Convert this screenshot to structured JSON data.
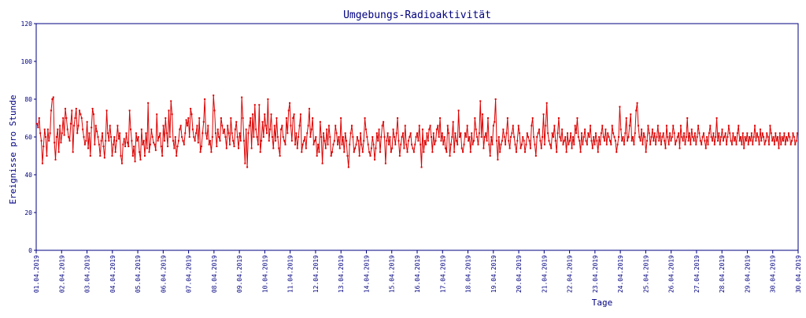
{
  "chart_data": {
    "type": "line",
    "title": "Umgebungs-Radioaktivität",
    "xlabel": "Tage",
    "ylabel": "Ereignisse pro Stunde",
    "ylim": [
      0,
      120
    ],
    "yticks": [
      0,
      20,
      40,
      60,
      80,
      100,
      120
    ],
    "grid": false,
    "legend": "none",
    "x_tick_labels": [
      "01.04.2019",
      "02.04.2019",
      "03.04.2019",
      "04.04.2019",
      "05.04.2019",
      "06.04.2019",
      "07.04.2019",
      "08.04.2019",
      "09.04.2019",
      "10.04.2019",
      "11.04.2019",
      "12.04.2019",
      "13.04.2019",
      "14.04.2019",
      "15.04.2019",
      "16.04.2019",
      "17.04.2019",
      "18.04.2019",
      "19.04.2019",
      "20.04.2019",
      "21.04.2019",
      "22.04.2019",
      "23.04.2019",
      "24.04.2019",
      "25.04.2019",
      "26.04.2019",
      "27.04.2019",
      "28.04.2019",
      "29.04.2019",
      "30.04.2019",
      "30.04.2019"
    ],
    "series": [
      {
        "color": "#dd0000",
        "values": [
          67,
          65,
          70,
          62,
          58,
          46,
          55,
          64,
          60,
          50,
          64,
          58,
          62,
          74,
          80,
          81,
          57,
          48,
          60,
          64,
          52,
          66,
          57,
          62,
          70,
          61,
          75,
          70,
          64,
          60,
          58,
          67,
          74,
          52,
          66,
          70,
          75,
          62,
          66,
          74,
          72,
          70,
          64,
          60,
          56,
          58,
          68,
          54,
          62,
          50,
          65,
          75,
          72,
          56,
          66,
          63,
          60,
          56,
          50,
          58,
          62,
          55,
          49,
          58,
          74,
          62,
          58,
          66,
          60,
          50,
          56,
          60,
          52,
          58,
          66,
          59,
          62,
          50,
          46,
          56,
          59,
          55,
          62,
          57,
          55,
          74,
          64,
          58,
          50,
          55,
          47,
          62,
          58,
          60,
          52,
          48,
          64,
          56,
          58,
          50,
          62,
          54,
          78,
          52,
          56,
          64,
          60,
          57,
          56,
          53,
          72,
          58,
          60,
          62,
          55,
          50,
          66,
          58,
          70,
          62,
          55,
          74,
          60,
          79,
          72,
          58,
          54,
          60,
          50,
          55,
          58,
          64,
          66,
          60,
          58,
          56,
          62,
          69,
          66,
          70,
          60,
          75,
          72,
          64,
          60,
          58,
          62,
          66,
          57,
          70,
          52,
          55,
          62,
          68,
          80,
          62,
          59,
          66,
          56,
          58,
          52,
          60,
          82,
          74,
          62,
          55,
          64,
          60,
          58,
          70,
          66,
          62,
          64,
          60,
          54,
          66,
          62,
          56,
          70,
          62,
          58,
          55,
          64,
          68,
          60,
          54,
          62,
          58,
          81,
          70,
          58,
          46,
          64,
          44,
          62,
          66,
          70,
          54,
          72,
          60,
          77,
          64,
          60,
          56,
          77,
          52,
          58,
          68,
          60,
          72,
          66,
          62,
          80,
          58,
          64,
          72,
          60,
          54,
          66,
          58,
          70,
          60,
          54,
          50,
          64,
          66,
          60,
          58,
          56,
          70,
          62,
          74,
          78,
          66,
          58,
          70,
          72,
          56,
          62,
          54,
          60,
          66,
          72,
          52,
          56,
          58,
          60,
          54,
          62,
          66,
          75,
          60,
          64,
          70,
          56,
          58,
          60,
          50,
          56,
          52,
          68,
          60,
          46,
          62,
          58,
          54,
          64,
          56,
          66,
          60,
          50,
          52,
          56,
          58,
          66,
          62,
          56,
          60,
          54,
          70,
          56,
          60,
          52,
          62,
          58,
          50,
          44,
          56,
          62,
          66,
          60,
          52,
          54,
          56,
          60,
          58,
          50,
          62,
          56,
          52,
          58,
          70,
          64,
          60,
          56,
          52,
          50,
          54,
          60,
          56,
          48,
          54,
          62,
          58,
          64,
          52,
          60,
          66,
          68,
          60,
          46,
          58,
          62,
          56,
          60,
          52,
          54,
          64,
          60,
          56,
          62,
          70,
          58,
          50,
          56,
          60,
          62,
          54,
          66,
          56,
          52,
          58,
          60,
          62,
          56,
          54,
          52,
          56,
          60,
          62,
          58,
          66,
          56,
          44,
          64,
          52,
          58,
          56,
          62,
          58,
          64,
          66,
          60,
          52,
          62,
          56,
          58,
          64,
          66,
          60,
          70,
          58,
          62,
          56,
          60,
          54,
          52,
          66,
          62,
          50,
          56,
          60,
          68,
          52,
          62,
          58,
          56,
          74,
          60,
          62,
          54,
          52,
          56,
          62,
          60,
          66,
          58,
          60,
          52,
          62,
          56,
          58,
          70,
          64,
          60,
          56,
          62,
          79,
          60,
          72,
          54,
          60,
          62,
          58,
          70,
          56,
          50,
          60,
          56,
          66,
          68,
          80,
          58,
          48,
          60,
          52,
          56,
          58,
          64,
          60,
          56,
          62,
          70,
          58,
          54,
          60,
          62,
          66,
          60,
          56,
          52,
          58,
          66,
          62,
          54,
          56,
          60,
          58,
          52,
          56,
          62,
          60,
          58,
          54,
          66,
          70,
          60,
          56,
          50,
          60,
          62,
          64,
          58,
          54,
          60,
          72,
          56,
          66,
          78,
          62,
          58,
          56,
          54,
          62,
          60,
          66,
          58,
          52,
          62,
          70,
          60,
          58,
          64,
          56,
          58,
          60,
          52,
          62,
          56,
          58,
          62,
          54,
          60,
          56,
          66,
          62,
          70,
          60,
          58,
          52,
          62,
          56,
          60,
          64,
          58,
          56,
          62,
          60,
          66,
          58,
          54,
          60,
          56,
          62,
          58,
          52,
          60,
          56,
          62,
          66,
          60,
          58,
          64,
          56,
          62,
          60,
          58,
          56,
          66,
          62,
          60,
          58,
          52,
          56,
          60,
          76,
          64,
          58,
          60,
          56,
          62,
          70,
          58,
          60,
          66,
          72,
          58,
          60,
          56,
          62,
          74,
          78,
          66,
          60,
          58,
          64,
          56,
          62,
          60,
          52,
          58,
          66,
          62,
          56,
          60,
          64,
          58,
          62,
          56,
          60,
          66,
          58,
          62,
          56,
          60,
          62,
          58,
          54,
          66,
          60,
          56,
          62,
          58,
          60,
          66,
          62,
          56,
          58,
          60,
          62,
          54,
          66,
          60,
          58,
          62,
          56,
          60,
          70,
          58,
          62,
          56,
          64,
          60,
          58,
          62,
          56,
          60,
          66,
          62,
          58,
          56,
          60,
          62,
          58,
          54,
          60,
          56,
          62,
          66,
          60,
          58,
          62,
          56,
          60,
          70,
          58,
          62,
          56,
          60,
          64,
          58,
          60,
          62,
          56,
          60,
          66,
          62,
          58,
          56,
          62,
          58,
          60,
          56,
          62,
          66,
          58,
          60,
          56,
          62,
          54,
          60,
          58,
          62,
          56,
          60,
          58,
          62,
          56,
          60,
          66,
          58,
          62,
          60,
          56,
          64,
          58,
          62,
          60,
          56,
          58,
          62,
          60,
          56,
          66,
          62,
          58,
          60,
          56,
          62,
          58,
          60,
          54,
          62,
          56,
          60,
          58,
          62,
          56,
          60,
          58,
          62,
          60,
          56,
          58,
          62,
          60,
          56,
          58,
          62
        ]
      }
    ]
  }
}
